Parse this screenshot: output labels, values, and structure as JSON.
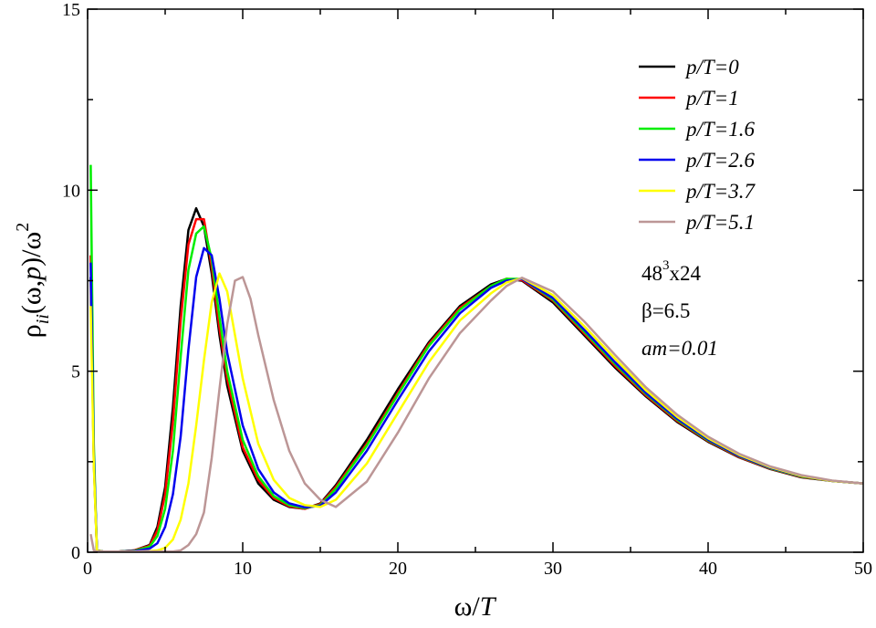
{
  "chart_data": {
    "type": "line",
    "xlabel_main": "ω/",
    "xlabel_var": "T",
    "ylabel": {
      "rho": "ρ",
      "sub": "ii",
      "mid": "(ω,",
      "p": "p",
      "end": ")/ω",
      "sup": "2"
    },
    "xlim": [
      0,
      50
    ],
    "ylim": [
      0,
      15
    ],
    "x_ticks": [
      0,
      10,
      20,
      30,
      40,
      50
    ],
    "y_ticks": [
      0,
      5,
      10,
      15
    ],
    "x_minor_step": 5,
    "y_minor_step": 2.5,
    "grid": false,
    "legend_position": "top-right",
    "series": [
      {
        "name": "p/T=0",
        "color": "#000000",
        "x": [
          0.2,
          0.4,
          0.6,
          1,
          2,
          3,
          4,
          4.5,
          5,
          5.5,
          6,
          6.5,
          7,
          7.5,
          8,
          8.5,
          9,
          10,
          11,
          12,
          13,
          14,
          15,
          16,
          18,
          20,
          22,
          24,
          26,
          27,
          28,
          30,
          32,
          34,
          36,
          38,
          40,
          42,
          44,
          46,
          48,
          50
        ],
        "y": [
          7.6,
          2.5,
          0.05,
          0.02,
          0.02,
          0.05,
          0.2,
          0.7,
          1.8,
          4.0,
          6.8,
          8.9,
          9.5,
          9.0,
          7.7,
          6.0,
          4.6,
          2.8,
          1.9,
          1.45,
          1.25,
          1.2,
          1.35,
          1.85,
          3.1,
          4.5,
          5.8,
          6.8,
          7.4,
          7.55,
          7.5,
          6.9,
          6.0,
          5.1,
          4.3,
          3.6,
          3.05,
          2.62,
          2.3,
          2.07,
          1.97,
          1.9
        ]
      },
      {
        "name": "p/T=1",
        "color": "#ff0000",
        "x": [
          0.2,
          0.4,
          0.6,
          1,
          2,
          3,
          4,
          4.5,
          5,
          5.5,
          6,
          6.5,
          7,
          7.5,
          8,
          8.5,
          9,
          10,
          11,
          12,
          13,
          14,
          15,
          16,
          18,
          20,
          22,
          24,
          26,
          27,
          28,
          30,
          32,
          34,
          36,
          38,
          40,
          42,
          44,
          46,
          48,
          50
        ],
        "y": [
          8.2,
          2.6,
          0.05,
          0.02,
          0.02,
          0.05,
          0.18,
          0.6,
          1.6,
          3.6,
          6.4,
          8.5,
          9.2,
          9.2,
          7.9,
          6.2,
          4.8,
          2.9,
          2.0,
          1.5,
          1.27,
          1.2,
          1.33,
          1.8,
          3.0,
          4.4,
          5.75,
          6.75,
          7.35,
          7.55,
          7.52,
          6.95,
          6.05,
          5.15,
          4.33,
          3.63,
          3.07,
          2.63,
          2.31,
          2.08,
          1.97,
          1.9
        ]
      },
      {
        "name": "p/T=1.6",
        "color": "#00ee00",
        "x": [
          0.2,
          0.4,
          0.6,
          1,
          2,
          3,
          4,
          4.5,
          5,
          5.5,
          6,
          6.5,
          7,
          7.5,
          8,
          8.5,
          9,
          10,
          11,
          12,
          13,
          14,
          15,
          16,
          18,
          20,
          22,
          24,
          26,
          27,
          28,
          30,
          32,
          34,
          36,
          38,
          40,
          42,
          44,
          46,
          48,
          50
        ],
        "y": [
          10.7,
          3.0,
          0.05,
          0.02,
          0.02,
          0.04,
          0.15,
          0.45,
          1.2,
          2.8,
          5.4,
          7.8,
          8.8,
          9.0,
          8.1,
          6.5,
          5.0,
          3.1,
          2.1,
          1.55,
          1.3,
          1.22,
          1.3,
          1.75,
          2.95,
          4.35,
          5.7,
          6.7,
          7.35,
          7.55,
          7.55,
          6.98,
          6.1,
          5.2,
          4.37,
          3.66,
          3.09,
          2.65,
          2.32,
          2.09,
          1.97,
          1.9
        ]
      },
      {
        "name": "p/T=2.6",
        "color": "#0000ee",
        "x": [
          0.2,
          0.4,
          0.6,
          1,
          2,
          3,
          4,
          4.5,
          5,
          5.5,
          6,
          6.5,
          7,
          7.5,
          8,
          8.5,
          9,
          10,
          11,
          12,
          13,
          14,
          15,
          16,
          18,
          20,
          22,
          24,
          26,
          27,
          28,
          30,
          32,
          34,
          36,
          38,
          40,
          42,
          44,
          46,
          48,
          50
        ],
        "y": [
          8.0,
          2.7,
          0.05,
          0.02,
          0.02,
          0.03,
          0.1,
          0.25,
          0.7,
          1.6,
          3.2,
          5.6,
          7.6,
          8.4,
          8.2,
          7.0,
          5.5,
          3.5,
          2.3,
          1.65,
          1.35,
          1.24,
          1.28,
          1.65,
          2.8,
          4.2,
          5.55,
          6.6,
          7.3,
          7.5,
          7.55,
          7.02,
          6.15,
          5.25,
          4.4,
          3.69,
          3.11,
          2.66,
          2.33,
          2.1,
          1.97,
          1.9
        ]
      },
      {
        "name": "p/T=3.7",
        "color": "#ffff00",
        "x": [
          0.2,
          0.4,
          0.6,
          1,
          2,
          3,
          4,
          4.5,
          5,
          5.5,
          6,
          6.5,
          7,
          7.5,
          8,
          8.5,
          9,
          10,
          11,
          12,
          13,
          14,
          15,
          16,
          18,
          20,
          22,
          24,
          26,
          27,
          28,
          30,
          32,
          34,
          36,
          38,
          40,
          42,
          44,
          46,
          48,
          50
        ],
        "y": [
          6.8,
          2.4,
          0.04,
          0.02,
          0.02,
          0.02,
          0.03,
          0.05,
          0.12,
          0.35,
          0.9,
          1.9,
          3.5,
          5.3,
          6.9,
          7.7,
          7.2,
          4.8,
          3.0,
          2.0,
          1.5,
          1.3,
          1.25,
          1.45,
          2.45,
          3.85,
          5.25,
          6.4,
          7.15,
          7.45,
          7.57,
          7.1,
          6.25,
          5.35,
          4.47,
          3.74,
          3.15,
          2.69,
          2.35,
          2.11,
          1.97,
          1.9
        ]
      },
      {
        "name": "p/T=5.1",
        "color": "#bc9696",
        "x": [
          0.2,
          0.4,
          0.6,
          1,
          2,
          3,
          4,
          5,
          5.5,
          6,
          6.5,
          7,
          7.5,
          8,
          8.5,
          9,
          9.5,
          10,
          10.5,
          11,
          12,
          13,
          14,
          15,
          16,
          18,
          20,
          22,
          24,
          26,
          27,
          28,
          30,
          32,
          34,
          36,
          38,
          40,
          42,
          44,
          46,
          48,
          50
        ],
        "y": [
          0.5,
          0.05,
          0.02,
          0.02,
          0.02,
          0.02,
          0.02,
          0.02,
          0.02,
          0.05,
          0.2,
          0.5,
          1.1,
          2.6,
          4.5,
          6.3,
          7.5,
          7.6,
          7.0,
          6.0,
          4.2,
          2.8,
          1.9,
          1.45,
          1.25,
          1.95,
          3.3,
          4.8,
          6.05,
          6.95,
          7.35,
          7.58,
          7.2,
          6.38,
          5.45,
          4.55,
          3.8,
          3.19,
          2.72,
          2.37,
          2.13,
          1.98,
          1.9
        ]
      }
    ],
    "annotations": [
      {
        "base": "48",
        "sup": "3",
        "rest": "x24",
        "italic": false
      },
      {
        "text": "β=6.5",
        "italic": false
      },
      {
        "text": "am=0.01",
        "italic": true
      }
    ]
  }
}
